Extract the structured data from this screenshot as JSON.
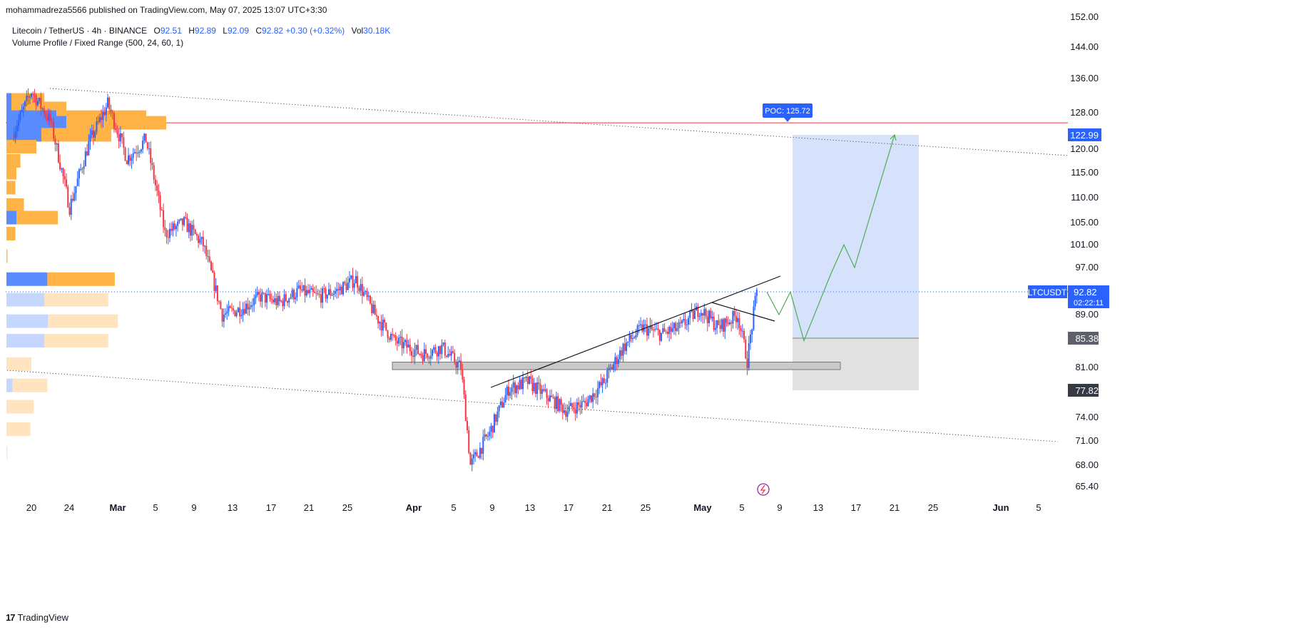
{
  "header": {
    "published": "mohammadreza5566 published on TradingView.com, May 07, 2025 13:07 UTC+3:30"
  },
  "legend": {
    "symbol": "Litecoin / TetherUS · 4h · BINANCE",
    "open_label": "O",
    "open": "92.51",
    "high_label": "H",
    "high": "92.89",
    "low_label": "L",
    "low": "92.09",
    "close_label": "C",
    "close": "92.82",
    "change": "+0.30 (+0.32%)",
    "vol_label": "Vol",
    "vol": "30.18K",
    "indicator": "Volume Profile / Fixed Range (500, 24, 60, 1)"
  },
  "footer": {
    "brand": "TradingView",
    "logo": "17"
  },
  "colors": {
    "up": "#2962ff",
    "down": "#f23645",
    "poc_line": "#f23645",
    "vp_up": "#5b8cff",
    "vp_down": "#ffb347",
    "target_zone": "#cfdcfb",
    "stop_zone": "#dedede",
    "projection": "#4caf50"
  },
  "chart_data": {
    "type": "candlestick",
    "y_ticks": [
      "152.00",
      "144.00",
      "136.00",
      "128.00",
      "120.00",
      "115.00",
      "110.00",
      "105.00",
      "101.00",
      "97.00",
      "89.00",
      "81.00",
      "74.00",
      "71.00",
      "68.00",
      "65.40"
    ],
    "x_ticks": [
      "20",
      "24",
      "Mar",
      "5",
      "9",
      "13",
      "17",
      "21",
      "25",
      "Apr",
      "5",
      "9",
      "13",
      "17",
      "21",
      "25",
      "May",
      "5",
      "9",
      "13",
      "17",
      "21",
      "25",
      "Jun",
      "5"
    ],
    "price_labels": {
      "target": "122.99",
      "symbol": "LTCUSDT",
      "last": "92.82",
      "countdown": "02:22:11",
      "entry": "85.38",
      "stop": "77.82"
    },
    "poc_label": "POC: 125.72",
    "poc_value": 125.72,
    "last_price": 92.82,
    "series": [
      {
        "x": "Feb 18",
        "y": 123
      },
      {
        "x": "Feb 20",
        "y": 133
      },
      {
        "x": "Feb 22",
        "y": 126
      },
      {
        "x": "Feb 24",
        "y": 108
      },
      {
        "x": "Feb 26",
        "y": 121
      },
      {
        "x": "Feb 28",
        "y": 130
      },
      {
        "x": "Mar 2",
        "y": 118
      },
      {
        "x": "Mar 4",
        "y": 122
      },
      {
        "x": "Mar 6",
        "y": 103
      },
      {
        "x": "Mar 8",
        "y": 105
      },
      {
        "x": "Mar 10",
        "y": 101
      },
      {
        "x": "Mar 12",
        "y": 89
      },
      {
        "x": "Mar 14",
        "y": 90
      },
      {
        "x": "Mar 16",
        "y": 92
      },
      {
        "x": "Mar 18",
        "y": 91
      },
      {
        "x": "Mar 20",
        "y": 93
      },
      {
        "x": "Mar 22",
        "y": 92
      },
      {
        "x": "Mar 24",
        "y": 93
      },
      {
        "x": "Mar 26",
        "y": 95
      },
      {
        "x": "Mar 28",
        "y": 89
      },
      {
        "x": "Mar 30",
        "y": 85
      },
      {
        "x": "Apr 2",
        "y": 83
      },
      {
        "x": "Apr 4",
        "y": 84
      },
      {
        "x": "Apr 6",
        "y": 81
      },
      {
        "x": "Apr 7",
        "y": 68
      },
      {
        "x": "Apr 9",
        "y": 72
      },
      {
        "x": "Apr 11",
        "y": 78
      },
      {
        "x": "Apr 13",
        "y": 79
      },
      {
        "x": "Apr 15",
        "y": 77
      },
      {
        "x": "Apr 17",
        "y": 75
      },
      {
        "x": "Apr 19",
        "y": 76
      },
      {
        "x": "Apr 21",
        "y": 79
      },
      {
        "x": "Apr 23",
        "y": 84
      },
      {
        "x": "Apr 25",
        "y": 87
      },
      {
        "x": "Apr 27",
        "y": 86
      },
      {
        "x": "Apr 29",
        "y": 87
      },
      {
        "x": "May 1",
        "y": 90
      },
      {
        "x": "May 3",
        "y": 87
      },
      {
        "x": "May 5",
        "y": 89
      },
      {
        "x": "May 6",
        "y": 82
      },
      {
        "x": "May 7",
        "y": 92.82
      }
    ],
    "volume_profile": [
      {
        "price": 131,
        "up": 10,
        "down": 66
      },
      {
        "price": 129,
        "up": 10,
        "down": 110
      },
      {
        "price": 127,
        "up": 100,
        "down": 180
      },
      {
        "price": 125.72,
        "up": 120,
        "down": 200
      },
      {
        "price": 123,
        "up": 70,
        "down": 140
      },
      {
        "price": 120.5,
        "up": 0,
        "down": 60
      },
      {
        "price": 117.5,
        "up": 0,
        "down": 28
      },
      {
        "price": 115,
        "up": 0,
        "down": 20
      },
      {
        "price": 112,
        "up": 0,
        "down": 18
      },
      {
        "price": 108.5,
        "up": 0,
        "down": 35
      },
      {
        "price": 106,
        "up": 20,
        "down": 83
      },
      {
        "price": 103,
        "up": 0,
        "down": 18
      },
      {
        "price": 99,
        "up": 0,
        "down": 2
      },
      {
        "price": 95,
        "up": 82,
        "down": 135
      },
      {
        "price": 91.5,
        "up": 76,
        "down": 128
      },
      {
        "price": 88,
        "up": 83,
        "down": 140
      },
      {
        "price": 85,
        "up": 76,
        "down": 128
      },
      {
        "price": 81.5,
        "up": 0,
        "down": 50
      },
      {
        "price": 78.5,
        "up": 12,
        "down": 70
      },
      {
        "price": 75.5,
        "up": 0,
        "down": 55
      },
      {
        "price": 72.5,
        "up": 0,
        "down": 48
      },
      {
        "price": 69.5,
        "up": 0,
        "down": 2
      }
    ],
    "support_zone": [
      80.7,
      81.8
    ],
    "position": {
      "target": 122.99,
      "entry": 85.38,
      "stop": 77.82
    },
    "projection_path": [
      92.8,
      89,
      92.8,
      85,
      96,
      101,
      97,
      122.99
    ]
  }
}
